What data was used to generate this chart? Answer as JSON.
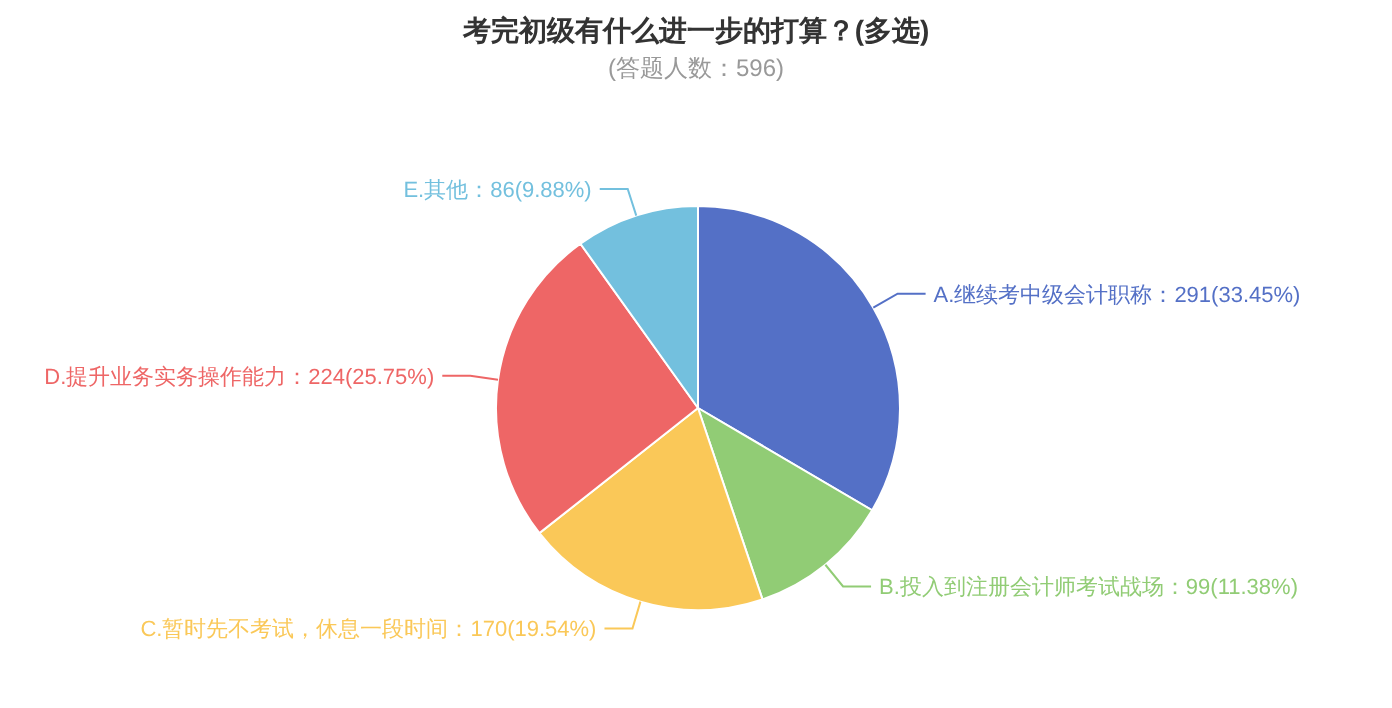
{
  "chart_data": {
    "type": "pie",
    "title": "考完初级有什么进一步的打算？(多选)",
    "subtitle": "(答题人数：596)",
    "categories": [
      "A.继续考中级会计职称",
      "B.投入到注册会计师考试战场",
      "C.暂时先不考试，休息一段时间",
      "D.提升业务实务操作能力",
      "E.其他"
    ],
    "values": [
      291,
      99,
      170,
      224,
      86
    ],
    "value_labels": [
      "291(33.45%)",
      "99(11.38%)",
      "170(19.54%)",
      "224(25.75%)",
      "86(9.88%)"
    ],
    "colors": [
      "#5470c6",
      "#91cc75",
      "#fac858",
      "#ee6666",
      "#73c0de"
    ]
  }
}
